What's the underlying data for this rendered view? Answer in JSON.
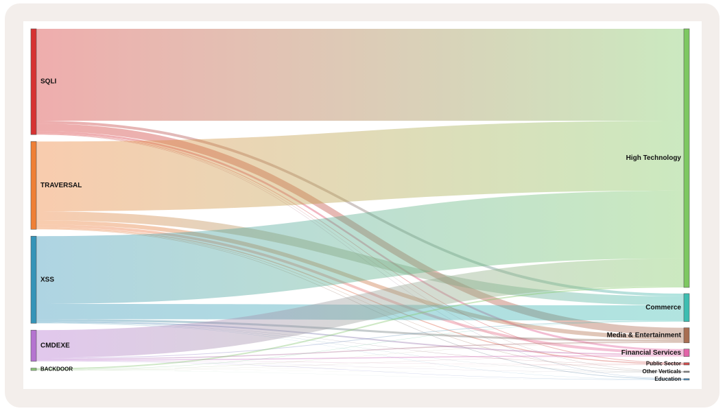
{
  "chart_data": {
    "type": "sankey",
    "sources": [
      {
        "id": "SQLI",
        "label": "SQLI",
        "color": "#d63232"
      },
      {
        "id": "TRAVERSAL",
        "label": "TRAVERSAL",
        "color": "#ef7f35"
      },
      {
        "id": "XSS",
        "label": "XSS",
        "color": "#3594b8"
      },
      {
        "id": "CMDEXE",
        "label": "CMDEXE",
        "color": "#b574d0"
      },
      {
        "id": "BACKDOOR",
        "label": "BACKDOOR",
        "color": "#8cc57a"
      }
    ],
    "targets": [
      {
        "id": "High Technology",
        "label": "High Technology",
        "color": "#7dc861"
      },
      {
        "id": "Commerce",
        "label": "Commerce",
        "color": "#3dbdb1"
      },
      {
        "id": "Media & Entertainment",
        "label": "Media & Entertainment",
        "color": "#a86e52"
      },
      {
        "id": "Financial Services",
        "label": "Financial Services",
        "color": "#e363a8"
      },
      {
        "id": "Public Sector",
        "label": "Public Sector",
        "color": "#d14b4b"
      },
      {
        "id": "Other Verticals",
        "label": "Other Verticals",
        "color": "#8b8b8b"
      },
      {
        "id": "Education",
        "label": "Education",
        "color": "#4a8fc2"
      }
    ],
    "links": [
      {
        "source": "SQLI",
        "target": "High Technology",
        "value": 133
      },
      {
        "source": "SQLI",
        "target": "Commerce",
        "value": 4
      },
      {
        "source": "SQLI",
        "target": "Media & Entertainment",
        "value": 11
      },
      {
        "source": "SQLI",
        "target": "Financial Services",
        "value": 3
      },
      {
        "source": "SQLI",
        "target": "Public Sector",
        "value": 1
      },
      {
        "source": "SQLI",
        "target": "Other Verticals",
        "value": 0.5
      },
      {
        "source": "SQLI",
        "target": "Education",
        "value": 0.5
      },
      {
        "source": "TRAVERSAL",
        "target": "High Technology",
        "value": 101
      },
      {
        "source": "TRAVERSAL",
        "target": "Commerce",
        "value": 13
      },
      {
        "source": "TRAVERSAL",
        "target": "Media & Entertainment",
        "value": 6
      },
      {
        "source": "TRAVERSAL",
        "target": "Financial Services",
        "value": 4
      },
      {
        "source": "TRAVERSAL",
        "target": "Public Sector",
        "value": 1.5
      },
      {
        "source": "TRAVERSAL",
        "target": "Other Verticals",
        "value": 0.7
      },
      {
        "source": "TRAVERSAL",
        "target": "Education",
        "value": 0.8
      },
      {
        "source": "XSS",
        "target": "High Technology",
        "value": 98
      },
      {
        "source": "XSS",
        "target": "Commerce",
        "value": 22
      },
      {
        "source": "XSS",
        "target": "Media & Entertainment",
        "value": 3
      },
      {
        "source": "XSS",
        "target": "Financial Services",
        "value": 2
      },
      {
        "source": "XSS",
        "target": "Public Sector",
        "value": 0.4
      },
      {
        "source": "XSS",
        "target": "Other Verticals",
        "value": 0.3
      },
      {
        "source": "XSS",
        "target": "Education",
        "value": 0.3
      },
      {
        "source": "CMDEXE",
        "target": "High Technology",
        "value": 40
      },
      {
        "source": "CMDEXE",
        "target": "Commerce",
        "value": 1
      },
      {
        "source": "CMDEXE",
        "target": "Media & Entertainment",
        "value": 1.5
      },
      {
        "source": "CMDEXE",
        "target": "Financial Services",
        "value": 1.5
      },
      {
        "source": "CMDEXE",
        "target": "Public Sector",
        "value": 0.3
      },
      {
        "source": "CMDEXE",
        "target": "Other Verticals",
        "value": 0.3
      },
      {
        "source": "CMDEXE",
        "target": "Education",
        "value": 0.4
      },
      {
        "source": "BACKDOOR",
        "target": "High Technology",
        "value": 2
      },
      {
        "source": "BACKDOOR",
        "target": "Commerce",
        "value": 0.5
      },
      {
        "source": "BACKDOOR",
        "target": "Media & Entertainment",
        "value": 0.3
      },
      {
        "source": "BACKDOOR",
        "target": "Financial Services",
        "value": 0.3
      },
      {
        "source": "BACKDOOR",
        "target": "Public Sector",
        "value": 0.1
      },
      {
        "source": "BACKDOOR",
        "target": "Other Verticals",
        "value": 0.1
      },
      {
        "source": "BACKDOOR",
        "target": "Education",
        "value": 0.1
      }
    ]
  }
}
